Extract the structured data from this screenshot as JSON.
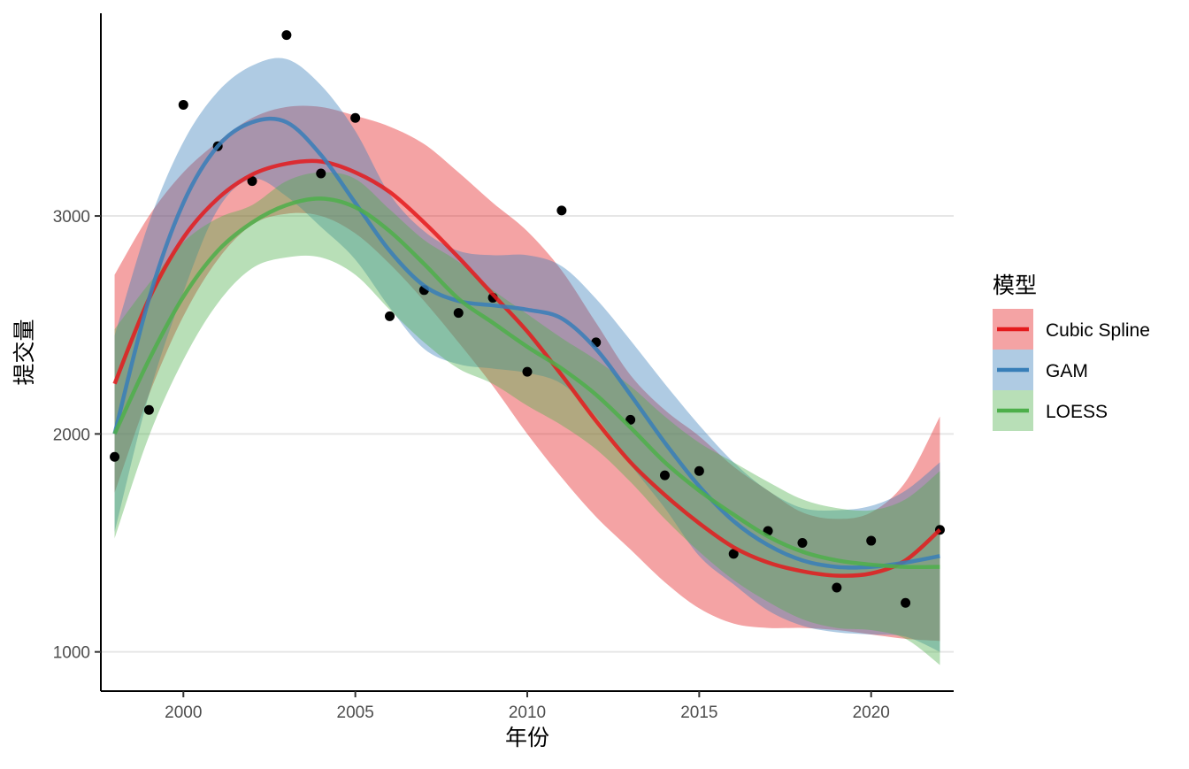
{
  "chart_data": {
    "type": "scatter",
    "xlabel": "年份",
    "ylabel": "提交量",
    "xlim": [
      1997.6,
      2022.4
    ],
    "ylim": [
      820,
      3930
    ],
    "x_ticks": [
      2000,
      2005,
      2010,
      2015,
      2020
    ],
    "y_ticks": [
      1000,
      2000,
      3000
    ],
    "grid": "horizontal-major",
    "legend": {
      "title": "模型",
      "position": "right",
      "entries": [
        "Cubic Spline",
        "GAM",
        "LOESS"
      ]
    },
    "points": {
      "x": [
        1998,
        1999,
        2000,
        2001,
        2002,
        2003,
        2004,
        2005,
        2006,
        2007,
        2008,
        2009,
        2010,
        2011,
        2012,
        2013,
        2014,
        2015,
        2016,
        2017,
        2018,
        2019,
        2020,
        2021,
        2022
      ],
      "y": [
        1895,
        2110,
        3510,
        3320,
        3160,
        3830,
        3195,
        3450,
        2540,
        2660,
        2555,
        2625,
        2285,
        3025,
        2420,
        2065,
        1810,
        1830,
        1450,
        1555,
        1500,
        1295,
        1510,
        1225,
        1560
      ]
    },
    "series": [
      {
        "name": "Cubic Spline",
        "color": "#E41A1C",
        "x": [
          1998,
          1999,
          2000,
          2001,
          2002,
          2003,
          2004,
          2005,
          2006,
          2007,
          2008,
          2009,
          2010,
          2011,
          2012,
          2013,
          2014,
          2015,
          2016,
          2017,
          2018,
          2019,
          2020,
          2021,
          2022
        ],
        "y": [
          2230,
          2620,
          2900,
          3080,
          3190,
          3240,
          3250,
          3200,
          3110,
          2970,
          2810,
          2640,
          2470,
          2270,
          2060,
          1870,
          1720,
          1590,
          1480,
          1410,
          1370,
          1350,
          1360,
          1420,
          1560
        ],
        "lower": [
          1730,
          2180,
          2540,
          2800,
          2960,
          3010,
          3000,
          2920,
          2780,
          2610,
          2420,
          2220,
          2000,
          1800,
          1620,
          1470,
          1320,
          1200,
          1130,
          1110,
          1110,
          1100,
          1080,
          1060,
          1050
        ],
        "upper": [
          2730,
          3000,
          3200,
          3340,
          3450,
          3500,
          3500,
          3460,
          3410,
          3330,
          3200,
          3060,
          2930,
          2750,
          2510,
          2270,
          2110,
          1990,
          1850,
          1740,
          1640,
          1610,
          1640,
          1780,
          2080
        ]
      },
      {
        "name": "GAM",
        "color": "#377EB8",
        "x": [
          1998,
          1999,
          2000,
          2001,
          2002,
          2003,
          2004,
          2005,
          2006,
          2007,
          2008,
          2009,
          2010,
          2011,
          2012,
          2013,
          2014,
          2015,
          2016,
          2017,
          2018,
          2019,
          2020,
          2021,
          2022
        ],
        "y": [
          2000,
          2620,
          3060,
          3320,
          3430,
          3430,
          3280,
          3060,
          2840,
          2680,
          2610,
          2590,
          2570,
          2530,
          2390,
          2180,
          1960,
          1760,
          1600,
          1490,
          1420,
          1390,
          1390,
          1410,
          1440
        ],
        "lower": [
          1550,
          2180,
          2650,
          3030,
          3170,
          3090,
          2950,
          2800,
          2580,
          2390,
          2320,
          2300,
          2280,
          2230,
          2080,
          1860,
          1660,
          1440,
          1310,
          1190,
          1120,
          1090,
          1080,
          1070,
          1000
        ],
        "upper": [
          2450,
          2970,
          3340,
          3570,
          3690,
          3720,
          3600,
          3390,
          3100,
          2930,
          2840,
          2820,
          2820,
          2770,
          2620,
          2430,
          2230,
          2040,
          1870,
          1740,
          1660,
          1650,
          1670,
          1740,
          1870
        ]
      },
      {
        "name": "LOESS",
        "color": "#4DAF4A",
        "x": [
          1998,
          1999,
          2000,
          2001,
          2002,
          2003,
          2004,
          2005,
          2006,
          2007,
          2008,
          2009,
          2010,
          2011,
          2012,
          2013,
          2014,
          2015,
          2016,
          2017,
          2018,
          2019,
          2020,
          2021,
          2022
        ],
        "y": [
          2000,
          2340,
          2630,
          2840,
          2970,
          3050,
          3080,
          3040,
          2930,
          2780,
          2620,
          2510,
          2400,
          2300,
          2180,
          2030,
          1870,
          1740,
          1630,
          1530,
          1460,
          1420,
          1400,
          1390,
          1390
        ],
        "lower": [
          1520,
          1990,
          2340,
          2600,
          2760,
          2810,
          2810,
          2730,
          2570,
          2420,
          2300,
          2230,
          2130,
          2040,
          1930,
          1780,
          1610,
          1460,
          1330,
          1230,
          1150,
          1110,
          1100,
          1060,
          940
        ],
        "upper": [
          2480,
          2690,
          2880,
          2990,
          3050,
          3160,
          3200,
          3170,
          3030,
          2890,
          2790,
          2660,
          2550,
          2440,
          2340,
          2220,
          2080,
          1960,
          1870,
          1780,
          1700,
          1660,
          1650,
          1700,
          1830
        ]
      }
    ]
  }
}
